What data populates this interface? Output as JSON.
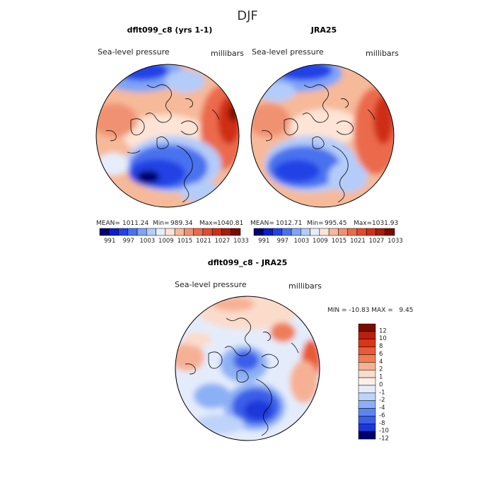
{
  "page_title": "DJF",
  "chart_data": [
    {
      "type": "heatmap",
      "projection": "north-polar-stereographic",
      "title": "dflt099_c8 (yrs 1-1)",
      "subtitle_left": "Sea-level pressure",
      "subtitle_right": "millibars",
      "stats": {
        "mean_label": "MEAN=",
        "mean": "1011.24",
        "min_label": "Min=",
        "min": "989.34",
        "max_label": "Max=",
        "max": "1040.81"
      },
      "colorbar_ticks": [
        "991",
        "997",
        "1003",
        "1009",
        "1015",
        "1021",
        "1027",
        "1033"
      ],
      "colors": [
        "#00006e",
        "#0b1ec8",
        "#2443e6",
        "#4a72ef",
        "#7ea4f6",
        "#b4ccf9",
        "#e6eefc",
        "#fde4d6",
        "#f6b99a",
        "#f09272",
        "#eb6a4c",
        "#e44a2e",
        "#cf2f18",
        "#a51d0c",
        "#7a0b00"
      ]
    },
    {
      "type": "heatmap",
      "projection": "north-polar-stereographic",
      "title": "JRA25",
      "subtitle_left": "Sea-level pressure",
      "subtitle_right": "millibars",
      "stats": {
        "mean_label": "MEAN=",
        "mean": "1012.71",
        "min_label": "Min=",
        "min": "995.45",
        "max_label": "Max=",
        "max": "1031.93"
      },
      "colorbar_ticks": [
        "991",
        "997",
        "1003",
        "1009",
        "1015",
        "1021",
        "1027",
        "1033"
      ],
      "colors": [
        "#00006e",
        "#0b1ec8",
        "#2443e6",
        "#4a72ef",
        "#7ea4f6",
        "#b4ccf9",
        "#e6eefc",
        "#fde4d6",
        "#f6b99a",
        "#f09272",
        "#eb6a4c",
        "#e44a2e",
        "#cf2f18",
        "#a51d0c",
        "#7a0b00"
      ]
    },
    {
      "type": "heatmap",
      "projection": "north-polar-stereographic",
      "title": "dflt099_c8 - JRA25",
      "subtitle_left": "Sea-level pressure",
      "subtitle_right": "millibars",
      "stats_text": "MIN = -10.83 MAX =   9.45",
      "colorbar_ticks": [
        "12",
        "10",
        "8",
        "6",
        "4",
        "2",
        "1",
        "0",
        "-1",
        "-2",
        "-4",
        "-6",
        "-8",
        "-10",
        "-12"
      ],
      "colors": [
        "#7a0b00",
        "#b8200e",
        "#dc3418",
        "#ea5a36",
        "#f07d56",
        "#f6b194",
        "#fbdccb",
        "#fcf0e8",
        "#e4ecfb",
        "#bed3f9",
        "#8cb0f5",
        "#5b86ef",
        "#3a5fe8",
        "#1c37d8",
        "#00006e"
      ]
    }
  ]
}
